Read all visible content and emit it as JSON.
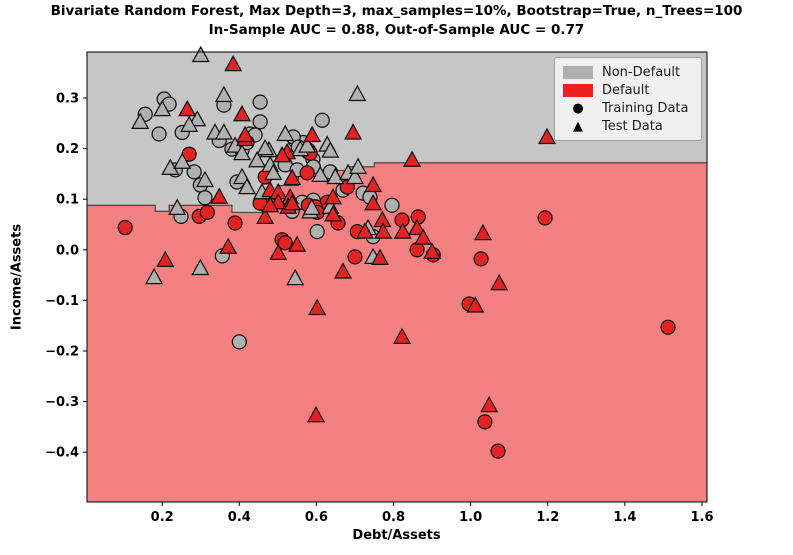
{
  "title": {
    "line1": "Bivariate Random Forest, Max Depth=3, max_samples=10%, Bootstrap=True, n_Trees=100",
    "line2": "In-Sample AUC = 0.88, Out-of-Sample AUC = 0.77"
  },
  "colors": {
    "region_nondefault": "#c6c6c6",
    "region_default": "#f38181",
    "marker_nondefault": "#b0b0b0",
    "marker_default": "#e32222",
    "marker_edge": "#111111",
    "boundary_line": "#3a3a3a",
    "frame": "#000000"
  },
  "legend": {
    "items": [
      {
        "label": "Non-Default",
        "swatch": "patch",
        "color": "#b0b0b0",
        "glyph": ""
      },
      {
        "label": "Default",
        "swatch": "patch",
        "color": "#ee1f1f",
        "glyph": ""
      },
      {
        "label": "Training Data",
        "swatch": "glyph",
        "color": "#000000",
        "glyph": "●"
      },
      {
        "label": "Test Data",
        "swatch": "glyph",
        "color": "#000000",
        "glyph": "▲"
      }
    ]
  },
  "chart_data": {
    "type": "scatter",
    "title": "Bivariate Random Forest, Max Depth=3, max_samples=10%, Bootstrap=True, n_Trees=100",
    "subtitle": "In-Sample AUC = 0.88, Out-of-Sample AUC = 0.77",
    "xlabel": "Debt/Assets",
    "ylabel": "Income/Assets",
    "xlim": [
      0.005,
      1.613
    ],
    "ylim": [
      -0.4985,
      0.391
    ],
    "grid": false,
    "legend_position": "upper right",
    "xticks": [
      {
        "v": 0.2,
        "label": "0.2"
      },
      {
        "v": 0.4,
        "label": "0.4"
      },
      {
        "v": 0.6,
        "label": "0.6"
      },
      {
        "v": 0.8,
        "label": "0.8"
      },
      {
        "v": 1.0,
        "label": "1.0"
      },
      {
        "v": 1.2,
        "label": "1.2"
      },
      {
        "v": 1.4,
        "label": "1.4"
      },
      {
        "v": 1.6,
        "label": "1.6"
      }
    ],
    "yticks": [
      {
        "v": 0.3,
        "label": "0.3"
      },
      {
        "v": 0.2,
        "label": "0.2"
      },
      {
        "v": 0.1,
        "label": "0.1"
      },
      {
        "v": 0.0,
        "label": "0.0"
      },
      {
        "v": -0.1,
        "label": "−0.1"
      },
      {
        "v": -0.2,
        "label": "−0.2"
      },
      {
        "v": -0.3,
        "label": "−0.3"
      },
      {
        "v": -0.4,
        "label": "−0.4"
      }
    ],
    "boundary": [
      [
        0.005,
        0.088
      ],
      [
        0.182,
        0.088
      ],
      [
        0.182,
        0.076
      ],
      [
        0.218,
        0.076
      ],
      [
        0.218,
        0.088
      ],
      [
        0.381,
        0.088
      ],
      [
        0.381,
        0.074
      ],
      [
        0.459,
        0.074
      ],
      [
        0.459,
        0.102
      ],
      [
        0.5,
        0.102
      ],
      [
        0.5,
        0.127
      ],
      [
        0.553,
        0.127
      ],
      [
        0.553,
        0.145
      ],
      [
        0.61,
        0.145
      ],
      [
        0.61,
        0.157
      ],
      [
        0.682,
        0.157
      ],
      [
        0.682,
        0.164
      ],
      [
        0.75,
        0.164
      ],
      [
        0.75,
        0.172
      ],
      [
        1.613,
        0.172
      ]
    ],
    "series": [
      {
        "name": "training-nondefault",
        "marker": "circle",
        "color": "#b0b0b0",
        "points": [
          [
            0.156,
            0.268
          ],
          [
            0.205,
            0.298
          ],
          [
            0.218,
            0.288
          ],
          [
            0.192,
            0.229
          ],
          [
            0.252,
            0.232
          ],
          [
            0.36,
            0.286
          ],
          [
            0.454,
            0.292
          ],
          [
            0.454,
            0.253
          ],
          [
            0.348,
            0.216
          ],
          [
            0.428,
            0.229
          ],
          [
            0.441,
            0.227
          ],
          [
            0.381,
            0.199
          ],
          [
            0.407,
            0.197
          ],
          [
            0.545,
            0.216
          ],
          [
            0.615,
            0.256
          ],
          [
            0.566,
            0.212
          ],
          [
            0.579,
            0.197
          ],
          [
            0.591,
            0.179
          ],
          [
            0.42,
            0.212
          ],
          [
            0.54,
            0.223
          ],
          [
            0.553,
            0.203
          ],
          [
            0.519,
            0.168
          ],
          [
            0.55,
            0.158
          ],
          [
            0.394,
            0.134
          ],
          [
            0.592,
            0.164
          ],
          [
            0.636,
            0.154
          ],
          [
            0.669,
            0.118
          ],
          [
            0.563,
            0.094
          ],
          [
            0.592,
            0.098
          ],
          [
            0.234,
            0.158
          ],
          [
            0.283,
            0.154
          ],
          [
            0.299,
            0.128
          ],
          [
            0.311,
            0.103
          ],
          [
            0.249,
            0.066
          ],
          [
            0.356,
            -0.012
          ],
          [
            0.537,
            0.076
          ],
          [
            0.602,
            0.036
          ],
          [
            0.747,
            0.026
          ],
          [
            0.796,
            0.088
          ],
          [
            0.4,
            -0.182
          ],
          [
            0.721,
            0.112
          ],
          [
            0.739,
            0.104
          ]
        ]
      },
      {
        "name": "training-default",
        "marker": "circle",
        "color": "#e32222",
        "points": [
          [
            0.27,
            0.189
          ],
          [
            0.579,
            0.193
          ],
          [
            0.584,
            0.191
          ],
          [
            0.467,
            0.144
          ],
          [
            0.576,
            0.152
          ],
          [
            0.68,
            0.124
          ],
          [
            0.475,
            0.092
          ],
          [
            0.579,
            0.088
          ],
          [
            0.628,
            0.094
          ],
          [
            0.296,
            0.066
          ],
          [
            0.317,
            0.074
          ],
          [
            0.104,
            0.044
          ],
          [
            0.389,
            0.053
          ],
          [
            0.597,
            0.085
          ],
          [
            0.602,
            0.074
          ],
          [
            0.656,
            0.053
          ],
          [
            0.511,
            0.02
          ],
          [
            0.519,
            0.014
          ],
          [
            0.706,
            0.036
          ],
          [
            0.822,
            0.059
          ],
          [
            0.7,
            -0.014
          ],
          [
            0.454,
            0.092
          ],
          [
            0.864,
            0.065
          ],
          [
            0.861,
            0.0
          ],
          [
            0.903,
            -0.01
          ],
          [
            1.027,
            -0.018
          ],
          [
            1.193,
            0.063
          ],
          [
            0.996,
            -0.107
          ],
          [
            1.512,
            -0.153
          ],
          [
            1.037,
            -0.34
          ],
          [
            1.071,
            -0.398
          ]
        ]
      },
      {
        "name": "test-nondefault",
        "marker": "triangle",
        "color": "#b0b0b0",
        "points": [
          [
            0.3,
            0.385
          ],
          [
            0.143,
            0.253
          ],
          [
            0.2,
            0.278
          ],
          [
            0.291,
            0.258
          ],
          [
            0.27,
            0.247
          ],
          [
            0.36,
            0.306
          ],
          [
            0.337,
            0.232
          ],
          [
            0.36,
            0.232
          ],
          [
            0.519,
            0.229
          ],
          [
            0.558,
            0.199
          ],
          [
            0.477,
            0.197
          ],
          [
            0.706,
            0.308
          ],
          [
            0.628,
            0.208
          ],
          [
            0.389,
            0.206
          ],
          [
            0.407,
            0.191
          ],
          [
            0.576,
            0.206
          ],
          [
            0.467,
            0.201
          ],
          [
            0.446,
            0.177
          ],
          [
            0.48,
            0.168
          ],
          [
            0.488,
            0.152
          ],
          [
            0.407,
            0.144
          ],
          [
            0.42,
            0.124
          ],
          [
            0.459,
            0.114
          ],
          [
            0.61,
            0.148
          ],
          [
            0.649,
            0.144
          ],
          [
            0.682,
            0.152
          ],
          [
            0.7,
            0.144
          ],
          [
            0.636,
            0.085
          ],
          [
            0.221,
            0.162
          ],
          [
            0.252,
            0.174
          ],
          [
            0.311,
            0.138
          ],
          [
            0.239,
            0.083
          ],
          [
            0.179,
            -0.054
          ],
          [
            0.299,
            -0.036
          ],
          [
            0.584,
            0.076
          ],
          [
            0.734,
            0.043
          ],
          [
            0.747,
            -0.014
          ],
          [
            0.545,
            -0.056
          ],
          [
            0.588,
            0.083
          ],
          [
            0.708,
            0.164
          ],
          [
            0.636,
            0.196
          ]
        ]
      },
      {
        "name": "test-default",
        "marker": "triangle",
        "color": "#e32222",
        "points": [
          [
            0.265,
            0.278
          ],
          [
            0.407,
            0.268
          ],
          [
            0.415,
            0.219
          ],
          [
            0.524,
            0.193
          ],
          [
            0.384,
            0.367
          ],
          [
            0.589,
            0.227
          ],
          [
            0.695,
            0.232
          ],
          [
            0.848,
            0.178
          ],
          [
            1.198,
            0.223
          ],
          [
            0.415,
            0.227
          ],
          [
            0.511,
            0.187
          ],
          [
            0.537,
            0.142
          ],
          [
            0.48,
            0.118
          ],
          [
            0.501,
            0.114
          ],
          [
            0.532,
            0.104
          ],
          [
            0.501,
            0.094
          ],
          [
            0.527,
            0.085
          ],
          [
            0.643,
            0.104
          ],
          [
            0.348,
            0.105
          ],
          [
            0.208,
            -0.02
          ],
          [
            0.467,
            0.065
          ],
          [
            0.371,
            0.006
          ],
          [
            0.643,
            0.07
          ],
          [
            0.55,
            0.01
          ],
          [
            0.501,
            -0.006
          ],
          [
            0.726,
            0.036
          ],
          [
            0.771,
            0.059
          ],
          [
            0.773,
            0.036
          ],
          [
            0.824,
            0.036
          ],
          [
            0.747,
            0.092
          ],
          [
            0.765,
            -0.016
          ],
          [
            0.669,
            -0.043
          ],
          [
            0.861,
            0.043
          ],
          [
            0.877,
            0.024
          ],
          [
            0.9,
            -0.004
          ],
          [
            1.032,
            0.033
          ],
          [
            1.074,
            -0.066
          ],
          [
            0.602,
            -0.115
          ],
          [
            0.822,
            -0.172
          ],
          [
            0.599,
            -0.327
          ],
          [
            1.012,
            -0.11
          ],
          [
            1.048,
            -0.307
          ],
          [
            0.48,
            0.088
          ],
          [
            0.537,
            0.092
          ],
          [
            0.747,
            0.128
          ]
        ]
      }
    ]
  }
}
